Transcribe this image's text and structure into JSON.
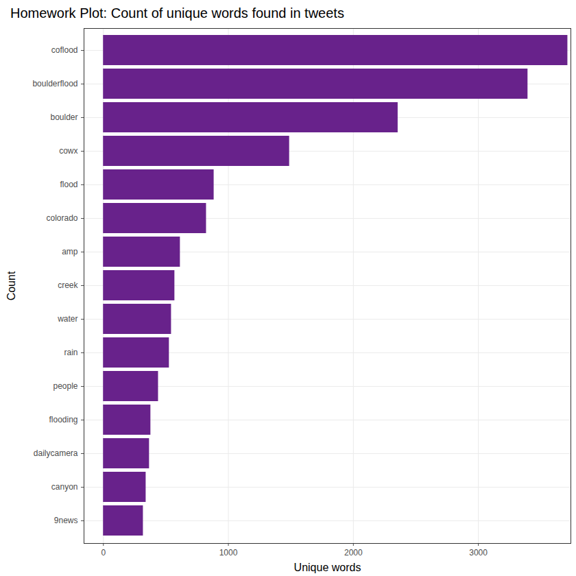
{
  "chart_data": {
    "type": "bar",
    "title": "Homework Plot: Count of unique words found in tweets",
    "x_label": "Unique words",
    "y_label": "Count",
    "orientation": "horizontal",
    "categories": [
      "coflood",
      "boulderflood",
      "boulder",
      "cowx",
      "flood",
      "colorado",
      "amp",
      "creek",
      "water",
      "rain",
      "people",
      "flooding",
      "dailycamera",
      "canyon",
      "9news"
    ],
    "values": [
      3715,
      3396,
      2357,
      1489,
      885,
      824,
      615,
      571,
      544,
      527,
      440,
      379,
      368,
      341,
      319
    ],
    "color": "#68228b",
    "xlim": [
      -155,
      3740
    ],
    "xticks": [
      0,
      1000,
      2000,
      3000
    ],
    "grid": true
  }
}
